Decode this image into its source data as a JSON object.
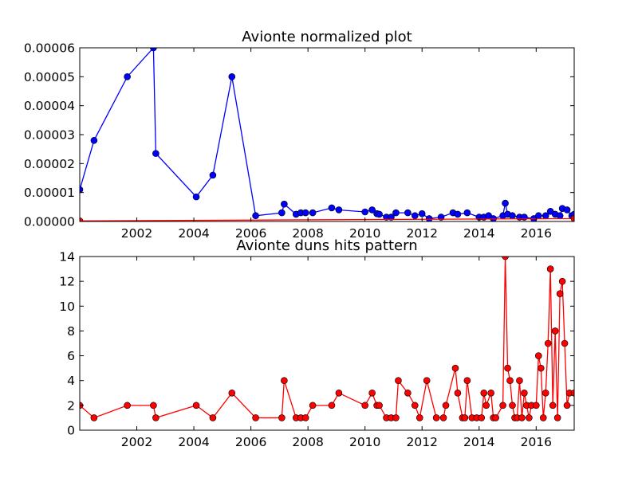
{
  "chart_data": [
    {
      "type": "line",
      "title": "Avionte normalized plot",
      "xlabel": "",
      "ylabel": "",
      "xlim": [
        "2000-01",
        "2017-05"
      ],
      "ylim": [
        0,
        6e-05
      ],
      "xticks": [
        "2002",
        "2004",
        "2006",
        "2008",
        "2010",
        "2012",
        "2014",
        "2016"
      ],
      "yticks": [
        "0.00000",
        "0.00001",
        "0.00002",
        "0.00003",
        "0.00004",
        "0.00005",
        "0.00006"
      ],
      "grid": false,
      "legend": "none",
      "series": [
        {
          "color": "#0000ff",
          "points": [
            [
              "2000-01",
              1.1e-05
            ],
            [
              "2000-07",
              2.8e-05
            ],
            [
              "2001-09",
              5e-05
            ],
            [
              "2002-08",
              6e-05
            ],
            [
              "2002-09",
              2.35e-05
            ],
            [
              "2004-02",
              8.5e-06
            ],
            [
              "2004-09",
              1.6e-05
            ],
            [
              "2005-05",
              5e-05
            ],
            [
              "2006-03",
              2e-06
            ],
            [
              "2007-02",
              3e-06
            ],
            [
              "2007-03",
              6e-06
            ],
            [
              "2007-08",
              2.5e-06
            ],
            [
              "2007-10",
              3e-06
            ],
            [
              "2007-12",
              3e-06
            ],
            [
              "2008-03",
              3e-06
            ],
            [
              "2008-11",
              4.7e-06
            ],
            [
              "2009-02",
              4e-06
            ],
            [
              "2010-01",
              3.3e-06
            ],
            [
              "2010-04",
              4e-06
            ],
            [
              "2010-06",
              2.7e-06
            ],
            [
              "2010-07",
              2.5e-06
            ],
            [
              "2010-10",
              1.5e-06
            ],
            [
              "2010-12",
              1.5e-06
            ],
            [
              "2011-02",
              3e-06
            ],
            [
              "2011-07",
              3e-06
            ],
            [
              "2011-10",
              2e-06
            ],
            [
              "2012-01",
              2.7e-06
            ],
            [
              "2012-04",
              1e-06
            ],
            [
              "2012-09",
              1.5e-06
            ],
            [
              "2013-02",
              3e-06
            ],
            [
              "2013-04",
              2.5e-06
            ],
            [
              "2013-08",
              3e-06
            ],
            [
              "2014-01",
              1.5e-06
            ],
            [
              "2014-03",
              1.5e-06
            ],
            [
              "2014-05",
              2e-06
            ],
            [
              "2014-07",
              1e-06
            ],
            [
              "2014-11",
              2e-06
            ],
            [
              "2014-12",
              6.3e-06
            ],
            [
              "2015-01",
              2.5e-06
            ],
            [
              "2015-03",
              2e-06
            ],
            [
              "2015-06",
              1.5e-06
            ],
            [
              "2015-08",
              1.5e-06
            ],
            [
              "2015-12",
              1e-06
            ],
            [
              "2016-02",
              2e-06
            ],
            [
              "2016-05",
              2e-06
            ],
            [
              "2016-07",
              3.5e-06
            ],
            [
              "2016-09",
              2.5e-06
            ],
            [
              "2016-11",
              2e-06
            ],
            [
              "2016-12",
              4.5e-06
            ],
            [
              "2017-02",
              4e-06
            ],
            [
              "2017-04",
              2e-06
            ],
            [
              "2017-05",
              2.5e-06
            ]
          ]
        },
        {
          "color": "#ff0000",
          "points": [
            [
              "2000-01",
              2e-07
            ],
            [
              "2017-05",
              1e-06
            ]
          ]
        }
      ]
    },
    {
      "type": "line",
      "title": "Avionte duns hits pattern",
      "xlabel": "",
      "ylabel": "",
      "xlim": [
        "2000-01",
        "2017-05"
      ],
      "ylim": [
        0,
        14
      ],
      "xticks": [
        "2002",
        "2004",
        "2006",
        "2008",
        "2010",
        "2012",
        "2014",
        "2016"
      ],
      "yticks": [
        "0",
        "2",
        "4",
        "6",
        "8",
        "10",
        "12",
        "14"
      ],
      "grid": false,
      "legend": "none",
      "series": [
        {
          "color": "#ff0000",
          "points": [
            [
              "2000-01",
              2
            ],
            [
              "2000-07",
              1
            ],
            [
              "2001-09",
              2
            ],
            [
              "2002-08",
              2
            ],
            [
              "2002-09",
              1
            ],
            [
              "2004-02",
              2
            ],
            [
              "2004-09",
              1
            ],
            [
              "2005-05",
              3
            ],
            [
              "2006-03",
              1
            ],
            [
              "2007-02",
              1
            ],
            [
              "2007-03",
              4
            ],
            [
              "2007-08",
              1
            ],
            [
              "2007-10",
              1
            ],
            [
              "2007-12",
              1
            ],
            [
              "2008-03",
              2
            ],
            [
              "2008-11",
              2
            ],
            [
              "2009-02",
              3
            ],
            [
              "2010-01",
              2
            ],
            [
              "2010-04",
              3
            ],
            [
              "2010-06",
              2
            ],
            [
              "2010-07",
              2
            ],
            [
              "2010-10",
              1
            ],
            [
              "2010-12",
              1
            ],
            [
              "2011-02",
              1
            ],
            [
              "2011-03",
              4
            ],
            [
              "2011-07",
              3
            ],
            [
              "2011-10",
              2
            ],
            [
              "2011-12",
              1
            ],
            [
              "2012-03",
              4
            ],
            [
              "2012-07",
              1
            ],
            [
              "2012-10",
              1
            ],
            [
              "2012-11",
              2
            ],
            [
              "2013-03",
              5
            ],
            [
              "2013-04",
              3
            ],
            [
              "2013-06",
              1
            ],
            [
              "2013-07",
              1
            ],
            [
              "2013-08",
              4
            ],
            [
              "2013-10",
              1
            ],
            [
              "2013-12",
              1
            ],
            [
              "2014-02",
              1
            ],
            [
              "2014-03",
              3
            ],
            [
              "2014-04",
              2
            ],
            [
              "2014-06",
              3
            ],
            [
              "2014-07",
              1
            ],
            [
              "2014-08",
              1
            ],
            [
              "2014-11",
              2
            ],
            [
              "2014-12",
              14
            ],
            [
              "2015-01",
              5
            ],
            [
              "2015-02",
              4
            ],
            [
              "2015-03",
              2
            ],
            [
              "2015-04",
              1
            ],
            [
              "2015-05",
              1
            ],
            [
              "2015-06",
              4
            ],
            [
              "2015-07",
              1
            ],
            [
              "2015-08",
              3
            ],
            [
              "2015-09",
              2
            ],
            [
              "2015-10",
              1
            ],
            [
              "2015-11",
              2
            ],
            [
              "2016-01",
              2
            ],
            [
              "2016-02",
              6
            ],
            [
              "2016-03",
              5
            ],
            [
              "2016-04",
              1
            ],
            [
              "2016-05",
              3
            ],
            [
              "2016-06",
              7
            ],
            [
              "2016-07",
              13
            ],
            [
              "2016-08",
              2
            ],
            [
              "2016-09",
              8
            ],
            [
              "2016-10",
              1
            ],
            [
              "2016-11",
              11
            ],
            [
              "2016-12",
              12
            ],
            [
              "2017-01",
              7
            ],
            [
              "2017-02",
              2
            ],
            [
              "2017-03",
              3
            ],
            [
              "2017-05",
              3
            ]
          ]
        }
      ]
    }
  ]
}
